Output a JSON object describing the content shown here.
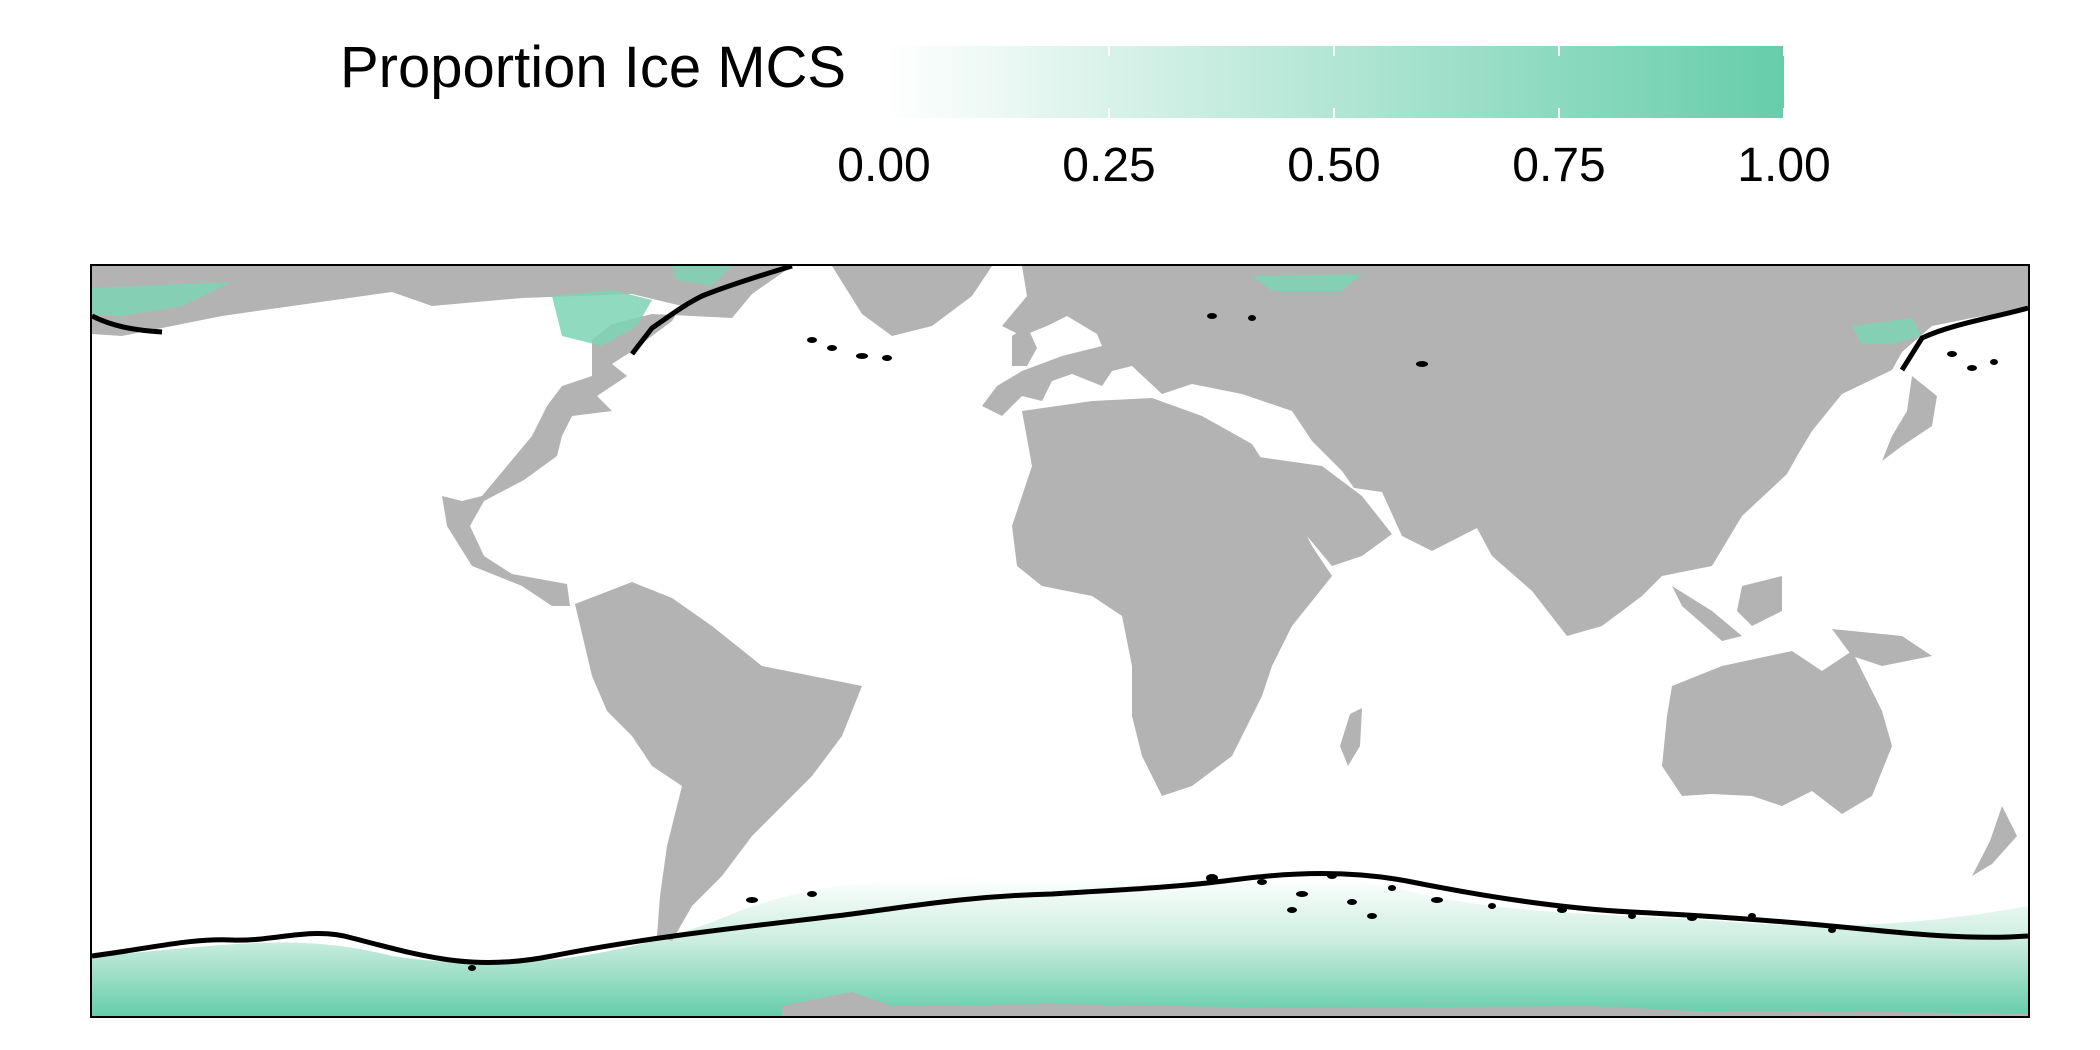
{
  "legend": {
    "title": "Proportion Ice MCS",
    "ticks": [
      "0.00",
      "0.25",
      "0.50",
      "0.75",
      "1.00"
    ],
    "scale_min": 0,
    "scale_max": 1,
    "color_low": "#ffffff",
    "color_high": "#66cdaa"
  },
  "map": {
    "projection": "equirectangular",
    "land_color": "#b3b3b3",
    "ocean_color": "#ffffff",
    "contour_color": "#000000"
  }
}
